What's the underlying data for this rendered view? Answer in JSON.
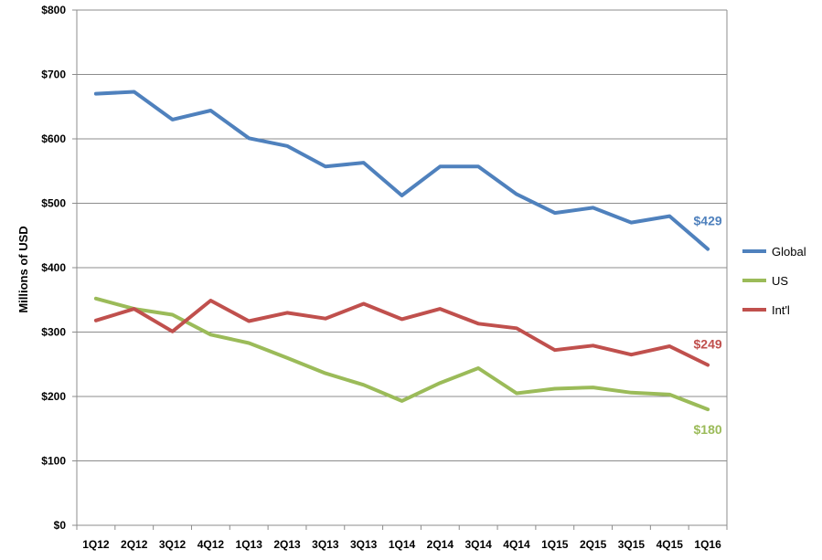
{
  "chart_data": {
    "type": "line",
    "title": "",
    "xlabel": "",
    "ylabel": "Millions of USD",
    "categories": [
      "1Q12",
      "2Q12",
      "3Q12",
      "4Q12",
      "1Q13",
      "2Q13",
      "3Q13",
      "3Q13",
      "1Q14",
      "2Q14",
      "3Q14",
      "4Q14",
      "1Q15",
      "2Q15",
      "3Q15",
      "4Q15",
      "1Q16"
    ],
    "ylim": [
      0,
      800
    ],
    "yticks": [
      0,
      100,
      200,
      300,
      400,
      500,
      600,
      700,
      800
    ],
    "ytick_labels": [
      "$0",
      "$100",
      "$200",
      "$300",
      "$400",
      "$500",
      "$600",
      "$700",
      "$800"
    ],
    "grid": true,
    "legend_position": "right",
    "series": [
      {
        "name": "Global",
        "color": "#4F81BD",
        "values": [
          670,
          673,
          630,
          644,
          601,
          589,
          557,
          563,
          512,
          557,
          557,
          514,
          485,
          493,
          470,
          480,
          429
        ],
        "end_label": "$429"
      },
      {
        "name": "US",
        "color": "#9BBB59",
        "values": [
          352,
          336,
          327,
          296,
          283,
          260,
          236,
          218,
          193,
          221,
          244,
          205,
          212,
          214,
          206,
          203,
          180
        ],
        "end_label": "$180"
      },
      {
        "name": "Int'l",
        "color": "#C0504D",
        "values": [
          318,
          336,
          301,
          349,
          317,
          330,
          321,
          344,
          320,
          336,
          313,
          306,
          272,
          279,
          265,
          278,
          249
        ],
        "end_label": "$249"
      }
    ]
  }
}
